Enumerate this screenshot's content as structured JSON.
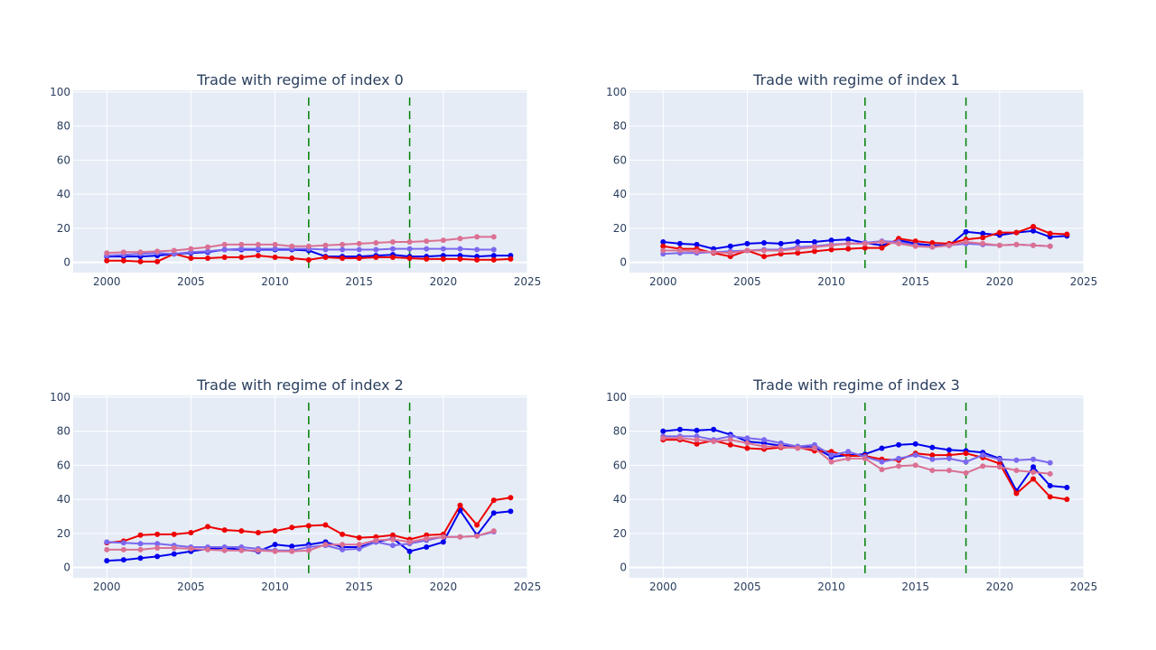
{
  "chart_data": [
    {
      "type": "line",
      "title": "Trade with regime of index 0",
      "xlim": [
        1998,
        2025
      ],
      "ylim": [
        -6,
        101
      ],
      "xticks": [
        2000,
        2005,
        2010,
        2015,
        2020,
        2025
      ],
      "yticks": [
        0,
        20,
        40,
        60,
        80,
        100
      ],
      "vlines": [
        2012,
        2018
      ],
      "grid": true,
      "series": [
        {
          "color": "#0000ee",
          "x": [
            2000,
            2001,
            2002,
            2003,
            2004,
            2005,
            2006,
            2007,
            2008,
            2009,
            2010,
            2011,
            2012,
            2013,
            2014,
            2015,
            2016,
            2017,
            2018,
            2019,
            2020,
            2021,
            2022,
            2023,
            2024
          ],
          "values": [
            3.5,
            3.5,
            3.5,
            4,
            5,
            5.5,
            6,
            7.5,
            7.5,
            7.5,
            7.5,
            7.5,
            7,
            3.5,
            3.5,
            3.5,
            4,
            4.5,
            3.5,
            3.5,
            4,
            4,
            3.5,
            4,
            4
          ]
        },
        {
          "color": "#ee0000",
          "x": [
            2000,
            2001,
            2002,
            2003,
            2004,
            2005,
            2006,
            2007,
            2008,
            2009,
            2010,
            2011,
            2012,
            2013,
            2014,
            2015,
            2016,
            2017,
            2018,
            2019,
            2020,
            2021,
            2022,
            2023,
            2024
          ],
          "values": [
            1,
            1,
            0.5,
            0.5,
            5,
            2.5,
            2.5,
            3,
            3,
            4,
            3,
            2.5,
            1.5,
            3,
            2.5,
            2.5,
            3,
            3,
            2.5,
            2,
            2,
            2,
            1.5,
            1.5,
            2
          ]
        },
        {
          "color": "#7b68ee",
          "x": [
            2000,
            2001,
            2002,
            2003,
            2004,
            2005,
            2006,
            2007,
            2008,
            2009,
            2010,
            2011,
            2012,
            2013,
            2014,
            2015,
            2016,
            2017,
            2018,
            2019,
            2020,
            2021,
            2022,
            2023
          ],
          "values": [
            4,
            4.5,
            5,
            5.5,
            5,
            6,
            6.5,
            7.5,
            8,
            8,
            8,
            8,
            8,
            7.5,
            7.5,
            7.5,
            7.5,
            8,
            8,
            8,
            8,
            8,
            7.5,
            7.5
          ]
        },
        {
          "color": "#db7093",
          "x": [
            2000,
            2001,
            2002,
            2003,
            2004,
            2005,
            2006,
            2007,
            2008,
            2009,
            2010,
            2011,
            2012,
            2013,
            2014,
            2015,
            2016,
            2017,
            2018,
            2019,
            2020,
            2021,
            2022,
            2023
          ],
          "values": [
            5.5,
            6,
            6,
            6.5,
            7,
            8,
            9,
            10.5,
            10.5,
            10.5,
            10.5,
            9.5,
            9.5,
            10,
            10.5,
            11,
            11.5,
            12,
            12,
            12.5,
            13,
            14,
            15,
            15
          ]
        }
      ]
    },
    {
      "type": "line",
      "title": "Trade with regime of index 1",
      "xlim": [
        1998,
        2025
      ],
      "ylim": [
        -6,
        101
      ],
      "xticks": [
        2000,
        2005,
        2010,
        2015,
        2020,
        2025
      ],
      "yticks": [
        0,
        20,
        40,
        60,
        80,
        100
      ],
      "vlines": [
        2012,
        2018
      ],
      "grid": true,
      "series": [
        {
          "color": "#0000ee",
          "x": [
            2000,
            2001,
            2002,
            2003,
            2004,
            2005,
            2006,
            2007,
            2008,
            2009,
            2010,
            2011,
            2012,
            2013,
            2014,
            2015,
            2016,
            2017,
            2018,
            2019,
            2020,
            2021,
            2022,
            2023,
            2024
          ],
          "values": [
            12,
            11,
            10.5,
            8,
            9.5,
            11,
            11.5,
            11,
            12,
            12,
            13,
            13.5,
            11.5,
            10,
            13,
            11,
            10,
            10,
            18,
            17,
            16,
            17.5,
            18.5,
            15,
            15.5
          ]
        },
        {
          "color": "#ee0000",
          "x": [
            2000,
            2001,
            2002,
            2003,
            2004,
            2005,
            2006,
            2007,
            2008,
            2009,
            2010,
            2011,
            2012,
            2013,
            2014,
            2015,
            2016,
            2017,
            2018,
            2019,
            2020,
            2021,
            2022,
            2023,
            2024
          ],
          "values": [
            9.5,
            8,
            8,
            5.5,
            3.5,
            7,
            3.5,
            5,
            5.5,
            6.5,
            7.5,
            8,
            8.5,
            8.5,
            14,
            12.5,
            11.5,
            11,
            13.5,
            14.5,
            17.5,
            17.5,
            21,
            17,
            16.5
          ]
        },
        {
          "color": "#7b68ee",
          "x": [
            2000,
            2001,
            2002,
            2003,
            2004,
            2005,
            2006,
            2007,
            2008,
            2009,
            2010,
            2011,
            2012,
            2013,
            2014,
            2015,
            2016,
            2017,
            2018,
            2019,
            2020,
            2021,
            2022,
            2023
          ],
          "values": [
            5,
            5.5,
            5.5,
            6,
            6.5,
            7,
            7.5,
            7.5,
            9,
            9.5,
            10.5,
            11,
            11.5,
            12.5,
            12,
            10,
            9,
            10,
            11,
            10.5,
            10,
            10.5,
            10,
            9.5
          ]
        },
        {
          "color": "#db7093",
          "x": [
            2000,
            2001,
            2002,
            2003,
            2004,
            2005,
            2006,
            2007,
            2008,
            2009,
            2010,
            2011,
            2012,
            2013,
            2014,
            2015,
            2016,
            2017,
            2018,
            2019,
            2020,
            2021,
            2022,
            2023
          ],
          "values": [
            7,
            7,
            6.5,
            6,
            5.5,
            7,
            7,
            7,
            8,
            9,
            10,
            11,
            11,
            12,
            11,
            9.5,
            9,
            10,
            12,
            11,
            10,
            10.5,
            10,
            9.5
          ]
        }
      ]
    },
    {
      "type": "line",
      "title": "Trade with regime of index 2",
      "xlim": [
        1998,
        2025
      ],
      "ylim": [
        -6,
        101
      ],
      "xticks": [
        2000,
        2005,
        2010,
        2015,
        2020,
        2025
      ],
      "yticks": [
        0,
        20,
        40,
        60,
        80,
        100
      ],
      "vlines": [
        2012,
        2018
      ],
      "grid": true,
      "series": [
        {
          "color": "#0000ee",
          "x": [
            2000,
            2001,
            2002,
            2003,
            2004,
            2005,
            2006,
            2007,
            2008,
            2009,
            2010,
            2011,
            2012,
            2013,
            2014,
            2015,
            2016,
            2017,
            2018,
            2019,
            2020,
            2021,
            2022,
            2023,
            2024
          ],
          "values": [
            4,
            4.5,
            5.5,
            6.5,
            8,
            9.5,
            11,
            11.5,
            10.5,
            9.5,
            13.5,
            12.5,
            13.5,
            15,
            12,
            12,
            15,
            17,
            9.5,
            12,
            15,
            33.5,
            19,
            32,
            33
          ]
        },
        {
          "color": "#ee0000",
          "x": [
            2000,
            2001,
            2002,
            2003,
            2004,
            2005,
            2006,
            2007,
            2008,
            2009,
            2010,
            2011,
            2012,
            2013,
            2014,
            2015,
            2016,
            2017,
            2018,
            2019,
            2020,
            2021,
            2022,
            2023,
            2024
          ],
          "values": [
            14.5,
            15.5,
            19,
            19.5,
            19.5,
            20.5,
            24,
            22,
            21.5,
            20.5,
            21.5,
            23.5,
            24.5,
            25,
            19.5,
            17.5,
            18,
            19,
            16.5,
            19,
            19.5,
            36.5,
            25,
            39.5,
            41
          ]
        },
        {
          "color": "#7b68ee",
          "x": [
            2000,
            2001,
            2002,
            2003,
            2004,
            2005,
            2006,
            2007,
            2008,
            2009,
            2010,
            2011,
            2012,
            2013,
            2014,
            2015,
            2016,
            2017,
            2018,
            2019,
            2020,
            2021,
            2022,
            2023
          ],
          "values": [
            15,
            14.5,
            14,
            14,
            13,
            12,
            12,
            12,
            12,
            11,
            10,
            10,
            12,
            13,
            10.5,
            11,
            15,
            13,
            14,
            16,
            18,
            18,
            18.5,
            21
          ]
        },
        {
          "color": "#db7093",
          "x": [
            2000,
            2001,
            2002,
            2003,
            2004,
            2005,
            2006,
            2007,
            2008,
            2009,
            2010,
            2011,
            2012,
            2013,
            2014,
            2015,
            2016,
            2017,
            2018,
            2019,
            2020,
            2021,
            2022,
            2023
          ],
          "values": [
            10.5,
            10.5,
            10.5,
            11.5,
            11.5,
            11,
            10.5,
            10,
            10,
            10,
            9.5,
            9.5,
            10,
            13.5,
            13.5,
            13.5,
            16,
            16.5,
            15,
            17,
            18,
            18,
            18.5,
            21.5
          ]
        }
      ]
    },
    {
      "type": "line",
      "title": "Trade with regime of index 3",
      "xlim": [
        1998,
        2025
      ],
      "ylim": [
        -6,
        101
      ],
      "xticks": [
        2000,
        2005,
        2010,
        2015,
        2020,
        2025
      ],
      "yticks": [
        0,
        20,
        40,
        60,
        80,
        100
      ],
      "vlines": [
        2012,
        2018
      ],
      "grid": true,
      "series": [
        {
          "color": "#0000ee",
          "x": [
            2000,
            2001,
            2002,
            2003,
            2004,
            2005,
            2006,
            2007,
            2008,
            2009,
            2010,
            2011,
            2012,
            2013,
            2014,
            2015,
            2016,
            2017,
            2018,
            2019,
            2020,
            2021,
            2022,
            2023,
            2024
          ],
          "values": [
            80,
            81,
            80.5,
            81,
            78,
            74,
            73,
            71.5,
            71,
            70.5,
            65,
            66,
            66.5,
            70,
            72,
            72.5,
            70.5,
            69,
            68.5,
            67.5,
            64,
            45,
            59,
            48,
            47
          ]
        },
        {
          "color": "#ee0000",
          "x": [
            2000,
            2001,
            2002,
            2003,
            2004,
            2005,
            2006,
            2007,
            2008,
            2009,
            2010,
            2011,
            2012,
            2013,
            2014,
            2015,
            2016,
            2017,
            2018,
            2019,
            2020,
            2021,
            2022,
            2023,
            2024
          ],
          "values": [
            75,
            75,
            72.5,
            74.5,
            72,
            70,
            69.5,
            70.5,
            70.5,
            68.5,
            68,
            65.5,
            65.5,
            63.5,
            63,
            67,
            66,
            66,
            67,
            64.5,
            61,
            43.5,
            52,
            41.5,
            40
          ]
        },
        {
          "color": "#7b68ee",
          "x": [
            2000,
            2001,
            2002,
            2003,
            2004,
            2005,
            2006,
            2007,
            2008,
            2009,
            2010,
            2011,
            2012,
            2013,
            2014,
            2015,
            2016,
            2017,
            2018,
            2019,
            2020,
            2021,
            2022,
            2023
          ],
          "values": [
            77,
            77,
            77,
            75,
            77,
            76,
            75,
            73,
            71,
            72,
            66,
            68,
            65,
            62,
            64,
            66,
            63.5,
            64,
            62,
            66,
            63.5,
            63,
            63.5,
            61.5
          ]
        },
        {
          "color": "#db7093",
          "x": [
            2000,
            2001,
            2002,
            2003,
            2004,
            2005,
            2006,
            2007,
            2008,
            2009,
            2010,
            2011,
            2012,
            2013,
            2014,
            2015,
            2016,
            2017,
            2018,
            2019,
            2020,
            2021,
            2022,
            2023
          ],
          "values": [
            76,
            76,
            75,
            74,
            75,
            73,
            71,
            71,
            70,
            70,
            62,
            64,
            64,
            57.5,
            59.5,
            60,
            57,
            57,
            55.5,
            59.5,
            59,
            57,
            56,
            55
          ]
        }
      ]
    }
  ]
}
